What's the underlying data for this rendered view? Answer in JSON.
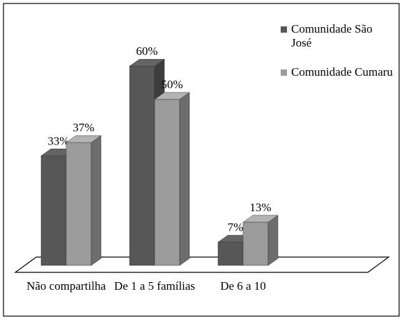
{
  "chart_data": {
    "type": "bar3d",
    "categories": [
      "Não compartilha",
      "De 1 a 5 famílias",
      "De 6 a 10"
    ],
    "series": [
      {
        "name": "Comunidade São José",
        "color": "#575757",
        "values": [
          33,
          60,
          7
        ],
        "value_labels": [
          "33%",
          "60%",
          "7%"
        ]
      },
      {
        "name": "Comunidade Cumaru",
        "color": "#9c9c9c",
        "values": [
          37,
          50,
          13
        ],
        "value_labels": [
          "37%",
          "50%",
          "13%"
        ]
      }
    ],
    "legend": "right"
  }
}
